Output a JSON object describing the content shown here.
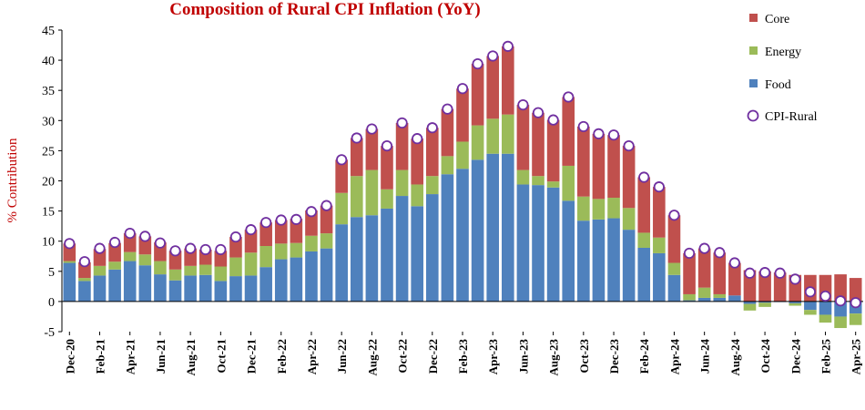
{
  "chart_data": {
    "type": "bar",
    "stacked": true,
    "title": "Composition of Rural CPI Inflation (YoY)",
    "xlabel": "",
    "ylabel": "% Contribution",
    "ylim": [
      -5,
      45
    ],
    "yticks": [
      -5,
      0,
      5,
      10,
      15,
      20,
      25,
      30,
      35,
      40,
      45
    ],
    "legend_position": "right",
    "categories": [
      "Dec-20",
      "Jan-21",
      "Feb-21",
      "Mar-21",
      "Apr-21",
      "May-21",
      "Jun-21",
      "Jul-21",
      "Aug-21",
      "Sep-21",
      "Oct-21",
      "Nov-21",
      "Dec-21",
      "Jan-22",
      "Feb-22",
      "Mar-22",
      "Apr-22",
      "May-22",
      "Jun-22",
      "Jul-22",
      "Aug-22",
      "Sep-22",
      "Oct-22",
      "Nov-22",
      "Dec-22",
      "Jan-23",
      "Feb-23",
      "Mar-23",
      "Apr-23",
      "May-23",
      "Jun-23",
      "Jul-23",
      "Aug-23",
      "Sep-23",
      "Oct-23",
      "Nov-23",
      "Dec-23",
      "Jan-24",
      "Feb-24",
      "Mar-24",
      "Apr-24",
      "May-24",
      "Jun-24",
      "Jul-24",
      "Aug-24",
      "Sep-24",
      "Oct-24",
      "Nov-24",
      "Dec-24",
      "Jan-25",
      "Feb-25",
      "Mar-25",
      "Apr-25"
    ],
    "x_tick_labels": [
      "Dec-20",
      "Feb-21",
      "Apr-21",
      "Jun-21",
      "Aug-21",
      "Oct-21",
      "Dec-21",
      "Feb-22",
      "Apr-22",
      "Jun-22",
      "Aug-22",
      "Oct-22",
      "Dec-22",
      "Feb-23",
      "Apr-23",
      "Jun-23",
      "Aug-23",
      "Oct-23",
      "Dec-23",
      "Feb-24",
      "Apr-24",
      "Jun-24",
      "Aug-24",
      "Oct-24",
      "Dec-24",
      "Feb-25",
      "Apr-25"
    ],
    "series": [
      {
        "name": "Food",
        "color": "#4f81bd",
        "kind": "bar",
        "values": [
          6.4,
          3.4,
          4.3,
          5.3,
          6.7,
          6.0,
          4.5,
          3.5,
          4.3,
          4.4,
          3.4,
          4.2,
          4.3,
          5.7,
          7.0,
          7.3,
          8.3,
          8.8,
          12.8,
          14.0,
          14.3,
          15.4,
          17.5,
          15.8,
          17.8,
          21.1,
          22.0,
          23.5,
          24.5,
          24.5,
          19.4,
          19.3,
          18.9,
          16.7,
          13.4,
          13.6,
          13.8,
          11.9,
          8.9,
          8.0,
          4.4,
          0.2,
          0.6,
          0.6,
          1.0,
          -0.4,
          -0.2,
          -0.1,
          -0.3,
          -1.4,
          -2.2,
          -2.5,
          -2.0
        ]
      },
      {
        "name": "Energy",
        "color": "#9bbb59",
        "kind": "bar",
        "values": [
          0.3,
          0.5,
          1.6,
          1.3,
          1.5,
          1.8,
          2.2,
          1.8,
          1.6,
          1.7,
          2.4,
          3.1,
          3.8,
          3.5,
          2.6,
          2.4,
          2.6,
          2.5,
          5.2,
          6.8,
          7.5,
          3.2,
          4.3,
          3.6,
          3.0,
          3.0,
          4.5,
          5.7,
          5.8,
          6.5,
          2.4,
          1.5,
          1.0,
          5.8,
          4.0,
          3.4,
          3.4,
          3.6,
          2.5,
          2.6,
          2.0,
          1.0,
          1.7,
          0.6,
          0.0,
          -1.1,
          -0.7,
          0.0,
          -0.4,
          -0.8,
          -1.3,
          -1.9,
          -1.9
        ]
      },
      {
        "name": "Core",
        "color": "#c0504d",
        "kind": "bar",
        "values": [
          2.9,
          2.6,
          2.8,
          3.1,
          3.1,
          3.0,
          3.1,
          3.1,
          2.9,
          2.5,
          2.6,
          3.4,
          3.8,
          3.9,
          3.9,
          4.0,
          4.2,
          4.6,
          5.5,
          6.3,
          6.8,
          7.2,
          7.8,
          7.6,
          8.0,
          7.8,
          8.8,
          10.2,
          10.4,
          11.3,
          10.8,
          10.5,
          10.2,
          11.4,
          11.6,
          10.8,
          10.4,
          10.3,
          9.2,
          8.4,
          7.9,
          6.8,
          6.5,
          6.9,
          5.4,
          5.2,
          5.0,
          4.8,
          4.4,
          4.4,
          4.4,
          4.5,
          3.9
        ]
      },
      {
        "name": "CPI-Rural",
        "kind": "point",
        "values": [
          9.6,
          6.6,
          8.8,
          9.8,
          11.3,
          10.8,
          9.7,
          8.4,
          8.8,
          8.6,
          8.6,
          10.7,
          11.9,
          13.1,
          13.5,
          13.6,
          14.9,
          15.9,
          23.5,
          27.1,
          28.6,
          25.8,
          29.6,
          27.0,
          28.8,
          31.9,
          35.3,
          39.4,
          40.7,
          42.3,
          32.6,
          31.3,
          30.1,
          33.9,
          29.0,
          27.8,
          27.6,
          25.8,
          20.6,
          19.0,
          14.3,
          8.0,
          8.8,
          8.1,
          6.4,
          4.7,
          4.8,
          4.7,
          3.7,
          1.6,
          0.9,
          0.1,
          -0.2
        ]
      }
    ],
    "legend": [
      "Core",
      "Energy",
      "Food",
      "CPI-Rural"
    ]
  }
}
